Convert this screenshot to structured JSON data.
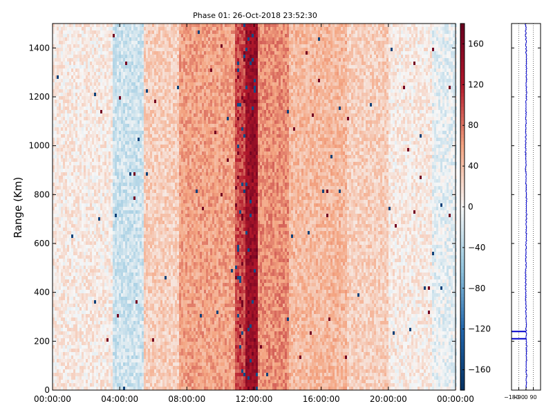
{
  "chart_data": [
    {
      "type": "heatmap",
      "title": "Phase 01: 26-Oct-2018 23:52:30",
      "xlabel": "",
      "ylabel": "Range (Km)",
      "x_ticks": [
        "00:00:00",
        "04:00:00",
        "08:00:00",
        "12:00:00",
        "16:00:00",
        "20:00:00",
        "00:00:00"
      ],
      "y_ticks": [
        0,
        200,
        400,
        600,
        800,
        1000,
        1200,
        1400
      ],
      "xlim_hours": [
        0,
        24
      ],
      "ylim": [
        0,
        1500
      ],
      "colormap": "RdBu_r",
      "color_range": [
        -180,
        180
      ],
      "phase_bands": [
        {
          "start_hour": 0.0,
          "end_hour": 3.5,
          "mean_phase": 10
        },
        {
          "start_hour": 3.5,
          "end_hour": 5.4,
          "mean_phase": -25
        },
        {
          "start_hour": 5.4,
          "end_hour": 7.5,
          "mean_phase": 30
        },
        {
          "start_hour": 7.5,
          "end_hour": 10.8,
          "mean_phase": 60
        },
        {
          "start_hour": 10.8,
          "end_hour": 11.4,
          "mean_phase": 100
        },
        {
          "start_hour": 11.4,
          "end_hour": 12.2,
          "mean_phase": 140
        },
        {
          "start_hour": 12.2,
          "end_hour": 14.0,
          "mean_phase": 70
        },
        {
          "start_hour": 14.0,
          "end_hour": 17.5,
          "mean_phase": 45
        },
        {
          "start_hour": 17.5,
          "end_hour": 20.0,
          "mean_phase": 30
        },
        {
          "start_hour": 20.0,
          "end_hour": 22.5,
          "mean_phase": 10
        },
        {
          "start_hour": 22.5,
          "end_hour": 24.0,
          "mean_phase": -10
        }
      ]
    },
    {
      "type": "colorbar",
      "ticks": [
        -160,
        -120,
        -80,
        -40,
        0,
        40,
        80,
        120,
        160
      ],
      "range": [
        -180,
        180
      ]
    },
    {
      "type": "line",
      "x_ticks": [
        "-180",
        "-90",
        "0",
        "90"
      ],
      "xlim": [
        -180,
        180
      ],
      "ylim": [
        0,
        1500
      ],
      "line_color": "#0000cc",
      "mean_phase": 0,
      "marker_ranges": [
        210,
        240
      ]
    }
  ]
}
